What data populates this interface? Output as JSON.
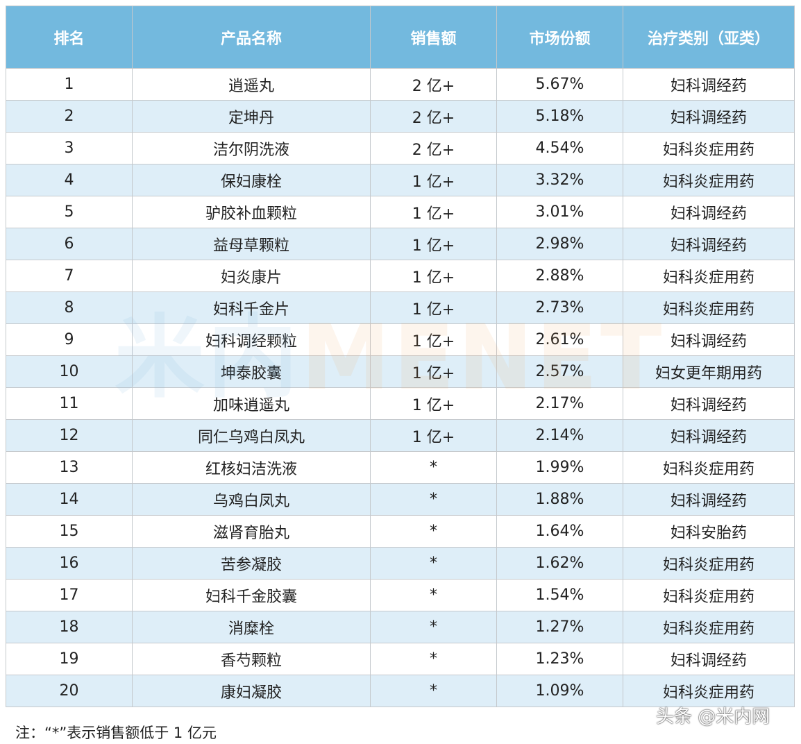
{
  "table": {
    "headers": [
      "排名",
      "产品名称",
      "销售额",
      "市场份额",
      "治疗类别（亚类）"
    ],
    "rows": [
      [
        "1",
        "逍遥丸",
        "2 亿+",
        "5.67%",
        "妇科调经药"
      ],
      [
        "2",
        "定坤丹",
        "2 亿+",
        "5.18%",
        "妇科调经药"
      ],
      [
        "3",
        "洁尔阴洗液",
        "2 亿+",
        "4.54%",
        "妇科炎症用药"
      ],
      [
        "4",
        "保妇康栓",
        "1 亿+",
        "3.32%",
        "妇科炎症用药"
      ],
      [
        "5",
        "驴胶补血颗粒",
        "1 亿+",
        "3.01%",
        "妇科调经药"
      ],
      [
        "6",
        "益母草颗粒",
        "1 亿+",
        "2.98%",
        "妇科调经药"
      ],
      [
        "7",
        "妇炎康片",
        "1 亿+",
        "2.88%",
        "妇科炎症用药"
      ],
      [
        "8",
        "妇科千金片",
        "1 亿+",
        "2.73%",
        "妇科炎症用药"
      ],
      [
        "9",
        "妇科调经颗粒",
        "1 亿+",
        "2.61%",
        "妇科调经药"
      ],
      [
        "10",
        "坤泰胶囊",
        "1 亿+",
        "2.57%",
        "妇女更年期用药"
      ],
      [
        "11",
        "加味逍遥丸",
        "1 亿+",
        "2.17%",
        "妇科调经药"
      ],
      [
        "12",
        "同仁乌鸡白凤丸",
        "1 亿+",
        "2.14%",
        "妇科调经药"
      ],
      [
        "13",
        "红核妇洁洗液",
        "*",
        "1.99%",
        "妇科炎症用药"
      ],
      [
        "14",
        "乌鸡白凤丸",
        "*",
        "1.88%",
        "妇科调经药"
      ],
      [
        "15",
        "滋肾育胎丸",
        "*",
        "1.64%",
        "妇科安胎药"
      ],
      [
        "16",
        "苦参凝胶",
        "*",
        "1.62%",
        "妇科炎症用药"
      ],
      [
        "17",
        "妇科千金胶囊",
        "*",
        "1.54%",
        "妇科炎症用药"
      ],
      [
        "18",
        "消糜栓",
        "*",
        "1.27%",
        "妇科炎症用药"
      ],
      [
        "19",
        "香芍颗粒",
        "*",
        "1.23%",
        "妇科调经药"
      ],
      [
        "20",
        "康妇凝胶",
        "*",
        "1.09%",
        "妇科炎症用药"
      ]
    ]
  },
  "note": "注：“*”表示销售额低于 1 亿元",
  "watermark": {
    "cn": "米内",
    "en": "MENET"
  },
  "brand": "头条 @米内网",
  "colors": {
    "header_bg": "#73b9de",
    "alt_row_bg": "#deeef8"
  }
}
